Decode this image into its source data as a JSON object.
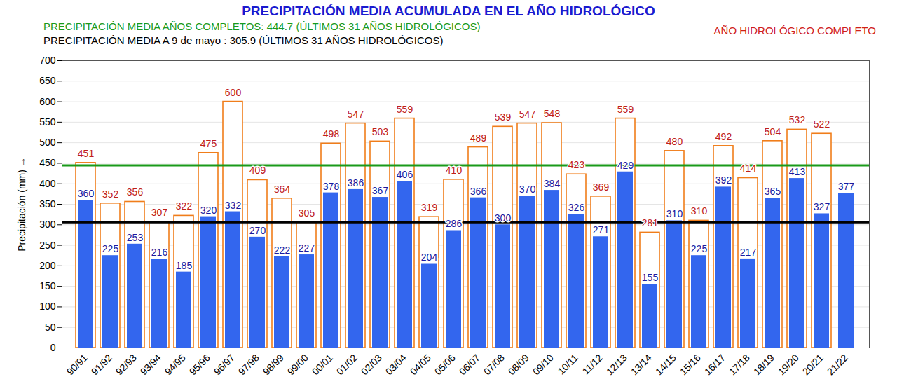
{
  "chart_data": {
    "type": "bar",
    "title": "PRECIPITACIÓN MEDIA ACUMULADA EN EL AÑO HIDROLÓGICO",
    "y_label": "Precipitación (mm)",
    "categories": [
      "90/91",
      "91/92",
      "92/93",
      "93/94",
      "94/95",
      "95/96",
      "96/97",
      "97/98",
      "98/99",
      "99/00",
      "00/01",
      "01/02",
      "02/03",
      "03/04",
      "04/05",
      "05/06",
      "06/07",
      "07/08",
      "08/09",
      "09/10",
      "10/11",
      "11/12",
      "12/13",
      "13/14",
      "14/15",
      "15/16",
      "16/17",
      "17/18",
      "18/19",
      "19/20",
      "20/21",
      "21/22"
    ],
    "series": [
      {
        "name": "AÑO HIDROLÓGICO COMPLETO",
        "color": "#f07d1a",
        "values": [
          451,
          352,
          356,
          307,
          322,
          475,
          600,
          409,
          364,
          305,
          498,
          547,
          503,
          559,
          319,
          410,
          489,
          539,
          547,
          548,
          423,
          369,
          559,
          281,
          480,
          310,
          492,
          414,
          504,
          532,
          522,
          null
        ]
      },
      {
        "color": "#3366ee",
        "values": [
          360,
          225,
          253,
          216,
          185,
          320,
          332,
          270,
          222,
          227,
          378,
          386,
          367,
          406,
          204,
          286,
          366,
          300,
          370,
          384,
          326,
          271,
          429,
          155,
          310,
          225,
          392,
          217,
          365,
          413,
          327,
          377
        ]
      }
    ],
    "reference_lines": [
      {
        "label": "PRECIPITACIÓN MEDIA AÑOS COMPLETOS: 444.7 (ÚLTIMOS 31 AÑOS HIDROLÓGICOS)",
        "value": 444.7,
        "color": "#1a9a1a"
      },
      {
        "label": "PRECIPITACIÓN MEDIA A 9 de mayo : 305.9 (ÚLTIMOS 31 AÑOS HIDROLÓGICOS)",
        "value": 305.9,
        "color": "#000000"
      }
    ],
    "ylim": [
      0,
      700
    ],
    "yticks": [
      0,
      50,
      100,
      150,
      200,
      250,
      300,
      350,
      400,
      450,
      500,
      550,
      600,
      650,
      700
    ],
    "grid": true,
    "data_labels": true,
    "legend": "top-right"
  }
}
